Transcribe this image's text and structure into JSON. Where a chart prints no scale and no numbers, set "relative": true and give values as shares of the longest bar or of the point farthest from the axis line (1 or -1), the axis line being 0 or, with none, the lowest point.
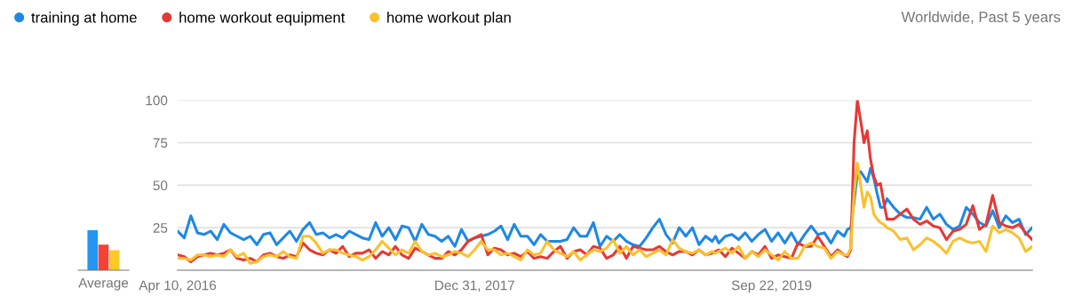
{
  "chart_data": [
    {
      "type": "bar",
      "relative": true,
      "categories": [
        "Average"
      ],
      "series": [
        {
          "color": "#2196f3",
          "values": [
            1
          ]
        },
        {
          "color": "#f44336",
          "values": [
            0.64
          ]
        },
        {
          "color": "#ffca28",
          "values": [
            0.5
          ]
        }
      ]
    },
    {
      "type": "line",
      "legend": "top",
      "grid": "y",
      "marker": "none",
      "line_style": "solid",
      "annotations": [
        "Worldwide, Past 5 years"
      ],
      "xlim": [
        "2016-04-10",
        "2021-03-28"
      ],
      "ylim": [
        0,
        100
      ],
      "yticks": [
        25,
        50,
        75,
        100
      ],
      "xticks": [
        {
          "value": "2016-04-10",
          "label": "Apr 10, 2016"
        },
        {
          "value": "2017-12-31",
          "label": "Dec 31, 2017"
        },
        {
          "value": "2019-09-22",
          "label": "Sep 22, 2019"
        }
      ],
      "x": [
        "2016-04-10",
        "2016-04-24",
        "2016-05-08",
        "2016-05-22",
        "2016-06-05",
        "2016-06-19",
        "2016-07-03",
        "2016-07-17",
        "2016-07-31",
        "2016-08-14",
        "2016-08-28",
        "2016-09-11",
        "2016-09-25",
        "2016-10-09",
        "2016-10-23",
        "2016-11-06",
        "2016-11-20",
        "2016-12-04",
        "2016-12-18",
        "2017-01-01",
        "2017-01-15",
        "2017-01-29",
        "2017-02-12",
        "2017-02-26",
        "2017-03-12",
        "2017-03-26",
        "2017-04-09",
        "2017-04-23",
        "2017-05-07",
        "2017-05-21",
        "2017-06-04",
        "2017-06-18",
        "2017-07-02",
        "2017-07-16",
        "2017-07-30",
        "2017-08-13",
        "2017-08-27",
        "2017-09-10",
        "2017-09-24",
        "2017-10-08",
        "2017-10-22",
        "2017-11-05",
        "2017-11-19",
        "2017-12-03",
        "2017-12-17",
        "2017-12-31",
        "2018-01-14",
        "2018-01-28",
        "2018-02-11",
        "2018-02-25",
        "2018-03-11",
        "2018-03-25",
        "2018-04-08",
        "2018-04-22",
        "2018-05-06",
        "2018-05-20",
        "2018-06-03",
        "2018-06-17",
        "2018-07-01",
        "2018-07-15",
        "2018-07-29",
        "2018-08-12",
        "2018-08-26",
        "2018-09-09",
        "2018-09-23",
        "2018-10-07",
        "2018-10-21",
        "2018-11-04",
        "2018-11-18",
        "2018-12-02",
        "2018-12-16",
        "2018-12-30",
        "2019-01-13",
        "2019-01-27",
        "2019-02-10",
        "2019-02-24",
        "2019-03-10",
        "2019-03-24",
        "2019-04-07",
        "2019-04-21",
        "2019-05-05",
        "2019-05-19",
        "2019-05-26",
        "2019-06-02",
        "2019-06-16",
        "2019-06-30",
        "2019-07-14",
        "2019-07-28",
        "2019-08-11",
        "2019-08-25",
        "2019-09-08",
        "2019-09-22",
        "2019-10-06",
        "2019-10-20",
        "2019-11-03",
        "2019-11-17",
        "2019-12-01",
        "2019-12-15",
        "2019-12-29",
        "2020-01-12",
        "2020-01-26",
        "2020-02-09",
        "2020-02-23",
        "2020-03-01",
        "2020-03-08",
        "2020-03-15",
        "2020-03-22",
        "2020-03-29",
        "2020-04-05",
        "2020-04-12",
        "2020-04-19",
        "2020-04-26",
        "2020-05-03",
        "2020-05-10",
        "2020-05-17",
        "2020-05-24",
        "2020-06-07",
        "2020-06-21",
        "2020-07-05",
        "2020-07-19",
        "2020-08-02",
        "2020-08-16",
        "2020-08-30",
        "2020-09-13",
        "2020-09-27",
        "2020-10-11",
        "2020-10-25",
        "2020-11-08",
        "2020-11-22",
        "2020-12-06",
        "2020-12-20",
        "2021-01-03",
        "2021-01-17",
        "2021-01-31",
        "2021-02-14",
        "2021-02-28",
        "2021-03-14",
        "2021-03-28"
      ],
      "series": [
        {
          "name": "training at home",
          "color": "#1e88e5",
          "values": [
            23,
            19,
            32,
            22,
            21,
            23,
            18,
            27,
            22,
            20,
            18,
            20,
            15,
            21,
            22,
            15,
            19,
            23,
            17,
            24,
            28,
            21,
            22,
            19,
            21,
            19,
            23,
            21,
            19,
            18,
            28,
            20,
            25,
            18,
            26,
            25,
            17,
            27,
            21,
            20,
            17,
            20,
            14,
            24,
            17,
            19,
            20,
            21,
            23,
            26,
            18,
            27,
            20,
            20,
            15,
            21,
            17,
            17,
            17,
            18,
            25,
            20,
            20,
            28,
            14,
            20,
            17,
            21,
            17,
            15,
            14,
            19,
            25,
            30,
            21,
            16,
            25,
            20,
            25,
            15,
            20,
            17,
            20,
            16,
            20,
            21,
            18,
            22,
            17,
            21,
            24,
            17,
            22,
            16,
            22,
            15,
            21,
            26,
            21,
            22,
            16,
            23,
            20,
            24,
            25,
            40,
            57,
            58,
            55,
            52,
            60,
            54,
            45,
            37,
            37,
            42,
            37,
            33,
            31,
            31,
            30,
            37,
            30,
            33,
            27,
            24,
            26,
            37,
            33,
            28,
            26,
            35,
            25,
            32,
            28,
            30,
            21,
            25
          ]
        },
        {
          "name": "home workout equipment",
          "color": "#e53935",
          "values": [
            9,
            8,
            5,
            8,
            9,
            10,
            9,
            10,
            12,
            7,
            6,
            7,
            5,
            9,
            10,
            8,
            7,
            9,
            8,
            16,
            12,
            10,
            9,
            12,
            10,
            14,
            8,
            10,
            10,
            12,
            7,
            11,
            9,
            14,
            9,
            7,
            13,
            11,
            9,
            7,
            7,
            11,
            9,
            12,
            17,
            19,
            21,
            9,
            13,
            12,
            9,
            10,
            8,
            11,
            7,
            8,
            7,
            11,
            14,
            7,
            11,
            12,
            9,
            14,
            13,
            7,
            9,
            14,
            7,
            14,
            13,
            12,
            12,
            14,
            11,
            9,
            11,
            11,
            9,
            12,
            9,
            10,
            11,
            12,
            8,
            13,
            10,
            7,
            11,
            9,
            14,
            7,
            9,
            8,
            7,
            16,
            14,
            14,
            20,
            14,
            8,
            12,
            9,
            8,
            12,
            75,
            100,
            88,
            75,
            82,
            65,
            55,
            50,
            51,
            40,
            30,
            30,
            33,
            36,
            30,
            27,
            29,
            26,
            25,
            18,
            23,
            24,
            27,
            38,
            24,
            27,
            44,
            28,
            26,
            25,
            27,
            22,
            18
          ]
        },
        {
          "name": "home workout plan",
          "color": "#fbc02d",
          "values": [
            7,
            7,
            6,
            9,
            9,
            8,
            9,
            8,
            12,
            8,
            10,
            4,
            5,
            8,
            9,
            8,
            11,
            8,
            7,
            20,
            20,
            16,
            10,
            12,
            12,
            10,
            9,
            8,
            6,
            8,
            12,
            17,
            13,
            9,
            12,
            10,
            17,
            11,
            9,
            10,
            8,
            9,
            11,
            10,
            8,
            12,
            17,
            12,
            12,
            9,
            10,
            8,
            6,
            12,
            9,
            10,
            17,
            12,
            10,
            8,
            11,
            6,
            9,
            12,
            11,
            13,
            18,
            10,
            14,
            9,
            12,
            8,
            10,
            12,
            9,
            18,
            13,
            11,
            10,
            12,
            9,
            11,
            10,
            11,
            13,
            10,
            14,
            7,
            11,
            8,
            12,
            9,
            6,
            11,
            7,
            7,
            14,
            16,
            14,
            13,
            7,
            11,
            9,
            9,
            13,
            45,
            63,
            50,
            37,
            46,
            43,
            33,
            30,
            28,
            27,
            25,
            23,
            18,
            19,
            12,
            15,
            19,
            17,
            14,
            10,
            17,
            19,
            17,
            16,
            17,
            11,
            26,
            22,
            24,
            22,
            19,
            11,
            14
          ]
        }
      ]
    }
  ]
}
